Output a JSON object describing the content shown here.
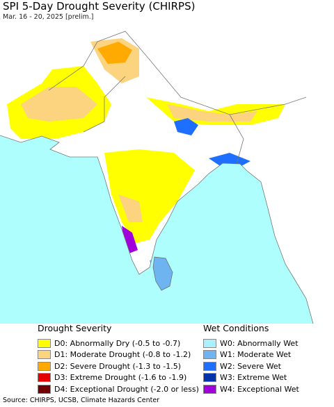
{
  "header": {
    "title": "SPI 5-Day Drought Severity (CHIRPS)",
    "subtitle": "Mar. 16 - 20, 2025 [prelim.]"
  },
  "legend": {
    "drought": {
      "title": "Drought Severity",
      "items": [
        {
          "label": "D0: Abnormally Dry (-0.5 to -0.7)",
          "color": "#ffff00"
        },
        {
          "label": "D1: Moderate Drought (-0.8 to -1.2)",
          "color": "#fcd37f"
        },
        {
          "label": "D2: Severe Drought (-1.3 to -1.5)",
          "color": "#ffaa00"
        },
        {
          "label": "D3: Extreme Drought (-1.6 to -1.9)",
          "color": "#e60000"
        },
        {
          "label": "D4: Exceptional Drought (-2.0 or less)",
          "color": "#730000"
        }
      ]
    },
    "wet": {
      "title": "Wet Conditions",
      "items": [
        {
          "label": "W0: Abnormally Wet",
          "color": "#aaf0ff"
        },
        {
          "label": "W1: Moderate Wet",
          "color": "#6eb4f0"
        },
        {
          "label": "W2: Severe Wet",
          "color": "#1e6eff"
        },
        {
          "label": "W3: Extreme Wet",
          "color": "#0032aa"
        },
        {
          "label": "W4: Exceptional Wet",
          "color": "#a000dc"
        }
      ]
    }
  },
  "footer": {
    "source": "Source: CHIRPS, UCSB, Climate Hazards Center"
  }
}
